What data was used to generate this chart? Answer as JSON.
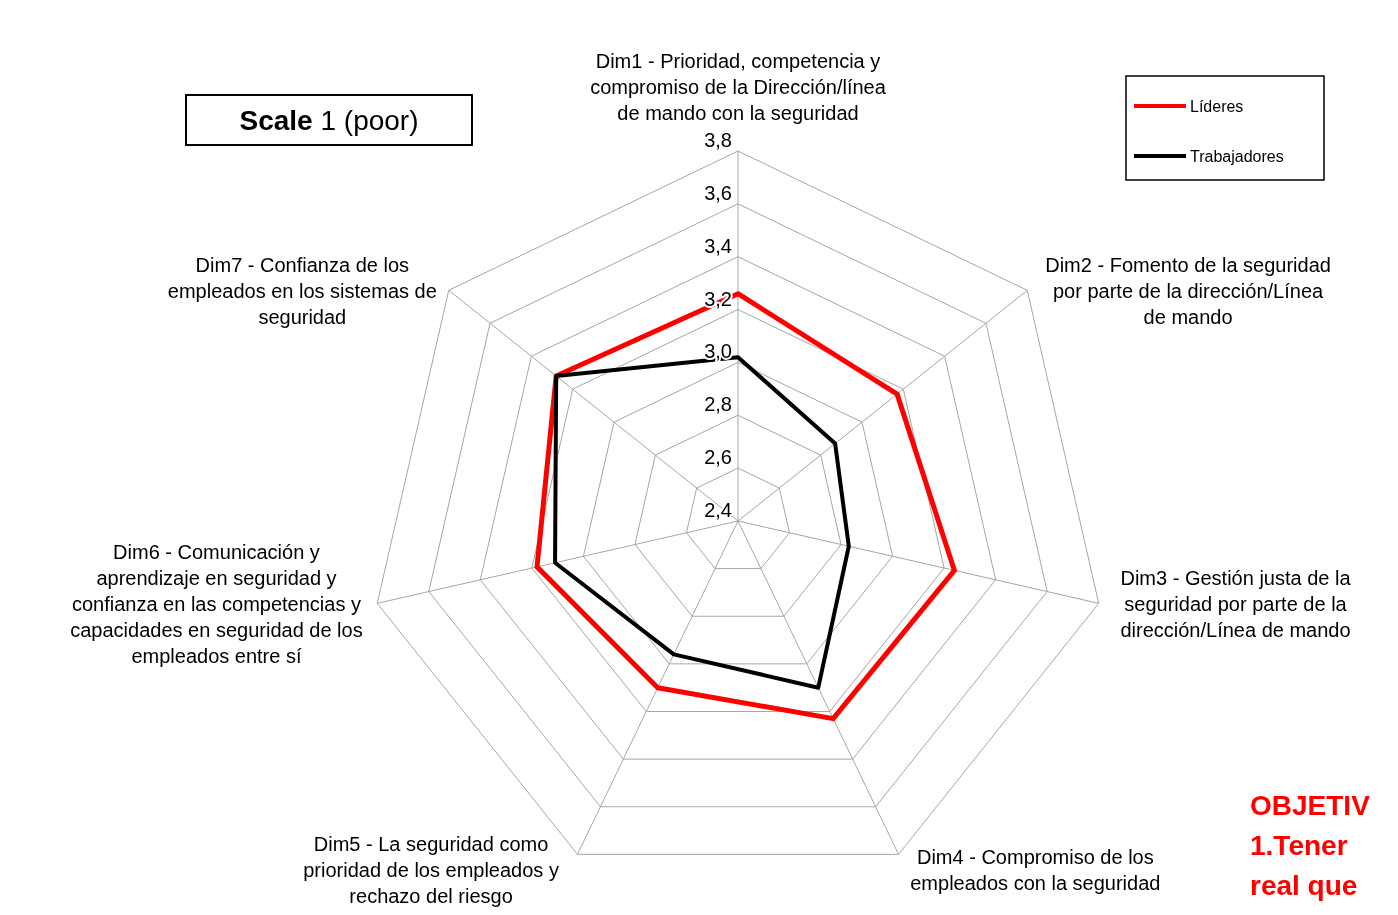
{
  "chart_data": {
    "type": "radar",
    "categories": [
      "Dim1 -  Prioridad, competencia y compromiso de la Dirección/línea de mando con la seguridad",
      "Dim2 -  Fomento de la seguridad por parte de la dirección/Línea de mando",
      "Dim3 - Gestión justa de la seguridad por parte de la dirección/Línea de mando",
      "Dim4 - Compromiso de los empleados con la seguridad",
      "Dim5 - La seguridad como prioridad de los empleados y rechazo del riesgo",
      "Dim6 - Comunicación y aprendizaje en seguridad y confianza en las competencias y capacidades en seguridad de los empleados entre sí",
      "Dim7 - Confianza de los empleados en los sistemas de seguridad"
    ],
    "series": [
      {
        "name": "Líderes",
        "color": "#ff0000",
        "values": [
          3.26,
          3.17,
          3.24,
          3.23,
          3.1,
          3.18,
          3.28
        ]
      },
      {
        "name": "Trabajadores",
        "color": "#000000",
        "values": [
          3.02,
          2.87,
          2.83,
          3.1,
          2.96,
          3.11,
          3.28
        ]
      }
    ],
    "ylim": [
      2.4,
      3.8
    ],
    "yticks": [
      {
        "value": 2.4,
        "label": "2,4"
      },
      {
        "value": 2.6,
        "label": "2,6"
      },
      {
        "value": 2.8,
        "label": "2,8"
      },
      {
        "value": 3.0,
        "label": "3,0"
      },
      {
        "value": 3.2,
        "label": "3,2"
      },
      {
        "value": 3.4,
        "label": "3,4"
      },
      {
        "value": 3.6,
        "label": "3,6"
      },
      {
        "value": 3.8,
        "label": "3,8"
      }
    ],
    "grid": true,
    "legend": "top right",
    "marker": "none",
    "line_style": "solid",
    "annotations": [
      "Scale 1 (poor)",
      "OBJETIV",
      "1.Tener",
      "real que"
    ]
  }
}
